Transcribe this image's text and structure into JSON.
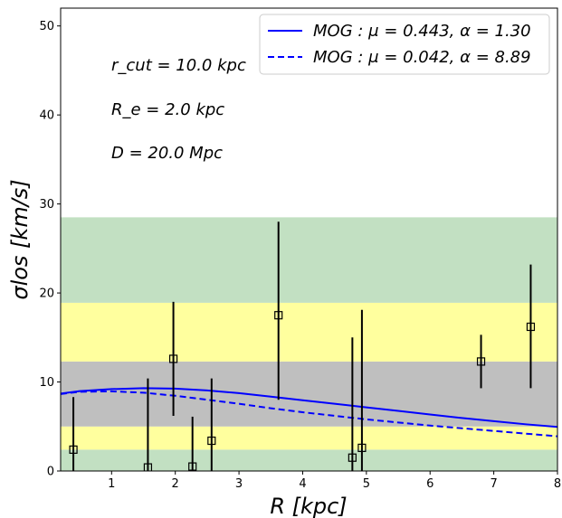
{
  "chart_data": {
    "type": "scatter",
    "xlabel": "R [kpc]",
    "ylabel": "σlos [km/s]",
    "xlim": [
      0.2,
      8.0
    ],
    "ylim": [
      0,
      52
    ],
    "xticks": [
      1,
      2,
      3,
      4,
      5,
      6,
      7,
      8
    ],
    "yticks": [
      0,
      10,
      20,
      30,
      40,
      50
    ],
    "grid": false,
    "legend_position": "top-right",
    "annotations": [
      "r_cut = 10.0 kpc",
      "R_e = 2.0 kpc",
      "D = 20.0 Mpc"
    ],
    "bands": [
      {
        "y0": 0.0,
        "y1": 2.4,
        "color": "#c2e0c2"
      },
      {
        "y0": 2.4,
        "y1": 5.0,
        "color": "#ffff9e"
      },
      {
        "y0": 5.0,
        "y1": 12.3,
        "color": "#bfbfbf"
      },
      {
        "y0": 12.3,
        "y1": 18.9,
        "color": "#ffff9e"
      },
      {
        "y0": 18.9,
        "y1": 28.5,
        "color": "#c2e0c2"
      }
    ],
    "points": [
      {
        "x": 0.4,
        "y": 2.4,
        "y_low": 0.0,
        "y_high": 8.3
      },
      {
        "x": 1.57,
        "y": 0.4,
        "y_low": 0.0,
        "y_high": 10.4
      },
      {
        "x": 1.97,
        "y": 12.6,
        "y_low": 6.2,
        "y_high": 19.0
      },
      {
        "x": 2.27,
        "y": 0.5,
        "y_low": 0.0,
        "y_high": 6.1
      },
      {
        "x": 2.57,
        "y": 3.4,
        "y_low": 0.0,
        "y_high": 10.4
      },
      {
        "x": 3.62,
        "y": 17.5,
        "y_low": 8.0,
        "y_high": 28.0
      },
      {
        "x": 4.78,
        "y": 1.5,
        "y_low": 0.0,
        "y_high": 15.0
      },
      {
        "x": 4.93,
        "y": 2.6,
        "y_low": 0.0,
        "y_high": 18.1
      },
      {
        "x": 6.8,
        "y": 12.3,
        "y_low": 9.3,
        "y_high": 15.3
      },
      {
        "x": 7.58,
        "y": 16.2,
        "y_low": 9.3,
        "y_high": 23.2
      }
    ],
    "series": [
      {
        "name": "MOG : μ = 0.443, α = 1.30",
        "style": "solid",
        "color": "#0000ff",
        "x": [
          0.2,
          0.5,
          1.0,
          1.5,
          2.0,
          2.5,
          3.0,
          3.5,
          4.0,
          4.5,
          5.0,
          5.5,
          6.0,
          6.5,
          7.0,
          7.5,
          8.0
        ],
        "y": [
          8.7,
          8.98,
          9.2,
          9.3,
          9.25,
          9.05,
          8.75,
          8.35,
          7.95,
          7.55,
          7.15,
          6.75,
          6.35,
          5.95,
          5.6,
          5.25,
          4.95
        ]
      },
      {
        "name": "MOG : μ = 0.042, α = 8.89",
        "style": "dashed",
        "color": "#0000ff",
        "x": [
          0.2,
          0.5,
          1.0,
          1.5,
          2.0,
          2.5,
          3.0,
          3.5,
          4.0,
          4.5,
          5.0,
          5.5,
          6.0,
          6.5,
          7.0,
          7.5,
          8.0
        ],
        "y": [
          8.65,
          8.9,
          8.95,
          8.8,
          8.45,
          8.0,
          7.55,
          7.05,
          6.6,
          6.2,
          5.8,
          5.45,
          5.1,
          4.8,
          4.5,
          4.2,
          3.9
        ]
      }
    ]
  }
}
